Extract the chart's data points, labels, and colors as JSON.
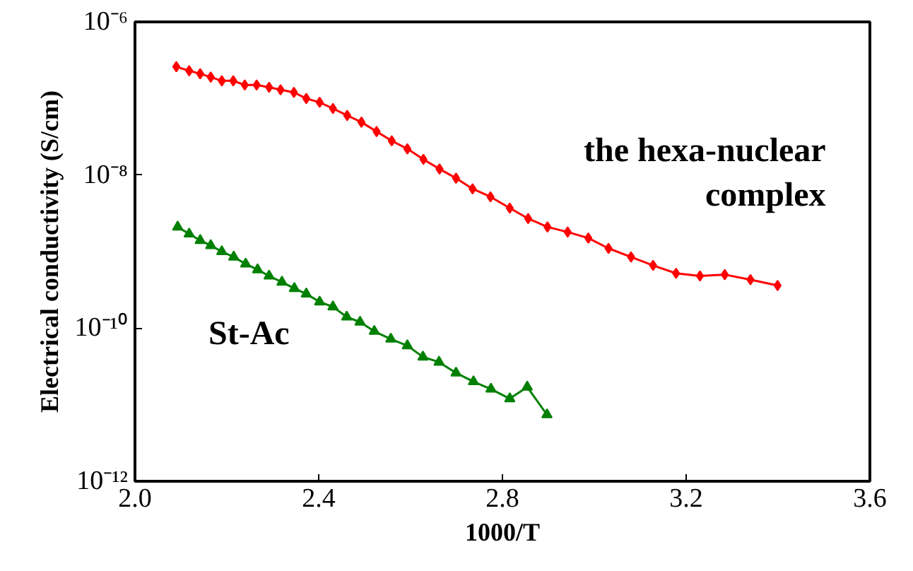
{
  "chart_data": {
    "type": "line",
    "xlabel": "1000/T",
    "ylabel": "Electrical conductivity (S/cm)",
    "log": "y",
    "grid": false,
    "line_style": "solid",
    "xlim": [
      2.0,
      3.6
    ],
    "xticks": [
      {
        "value": 2.0,
        "label": "2.0"
      },
      {
        "value": 2.4,
        "label": "2.4"
      },
      {
        "value": 2.8,
        "label": "2.8"
      },
      {
        "value": 3.2,
        "label": "3.2"
      },
      {
        "value": 3.6,
        "label": "3.6"
      }
    ],
    "ylim": [
      1e-12,
      1e-06
    ],
    "yticks": [
      {
        "value": 1e-12,
        "label": "10⁻¹²"
      },
      {
        "value": 1e-10,
        "label": "10⁻¹⁰"
      },
      {
        "value": 1e-08,
        "label": "10⁻⁸"
      },
      {
        "value": 1e-06,
        "label": "10⁻⁶"
      }
    ],
    "series": [
      {
        "name": "the hexa-nuclear complex",
        "color": "#ff0000",
        "marker": "diamond",
        "x": [
          2.09,
          2.118,
          2.142,
          2.165,
          2.189,
          2.214,
          2.239,
          2.265,
          2.292,
          2.317,
          2.346,
          2.373,
          2.402,
          2.431,
          2.462,
          2.493,
          2.526,
          2.559,
          2.593,
          2.628,
          2.663,
          2.699,
          2.735,
          2.774,
          2.816,
          2.856,
          2.898,
          2.942,
          2.987,
          3.031,
          3.08,
          3.128,
          3.178,
          3.23,
          3.284,
          3.34,
          3.399
        ],
        "values": [
          2.6e-07,
          2.3e-07,
          2.1e-07,
          1.9e-07,
          1.7e-07,
          1.7e-07,
          1.5e-07,
          1.5e-07,
          1.4e-07,
          1.3e-07,
          1.2e-07,
          1e-07,
          8.9e-08,
          7.4e-08,
          6e-08,
          4.9e-08,
          3.7e-08,
          2.8e-08,
          2.2e-08,
          1.6e-08,
          1.2e-08,
          9.1e-09,
          6.6e-09,
          5.2e-09,
          3.7e-09,
          2.7e-09,
          2.1e-09,
          1.8e-09,
          1.5e-09,
          1.1e-09,
          8.5e-10,
          6.6e-10,
          5.2e-10,
          4.8e-10,
          5e-10,
          4.3e-10,
          3.6e-10
        ]
      },
      {
        "name": "St-Ac",
        "color": "#008000",
        "marker": "triangle",
        "x": [
          2.093,
          2.118,
          2.142,
          2.165,
          2.189,
          2.215,
          2.241,
          2.267,
          2.292,
          2.32,
          2.347,
          2.373,
          2.402,
          2.431,
          2.461,
          2.49,
          2.521,
          2.557,
          2.593,
          2.627,
          2.662,
          2.699,
          2.737,
          2.775,
          2.816,
          2.854,
          2.897
        ],
        "values": [
          2.1e-09,
          1.7e-09,
          1.4e-09,
          1.2e-09,
          1e-09,
          8.5e-10,
          6.9e-10,
          5.8e-10,
          4.8e-10,
          4e-10,
          3.3e-10,
          2.8e-10,
          2.2e-10,
          1.9e-10,
          1.4e-10,
          1.2e-10,
          9.1e-11,
          7.2e-11,
          5.9e-11,
          4.2e-11,
          3.6e-11,
          2.6e-11,
          2e-11,
          1.6e-11,
          1.2e-11,
          1.7e-11,
          7.4e-12
        ]
      }
    ]
  }
}
